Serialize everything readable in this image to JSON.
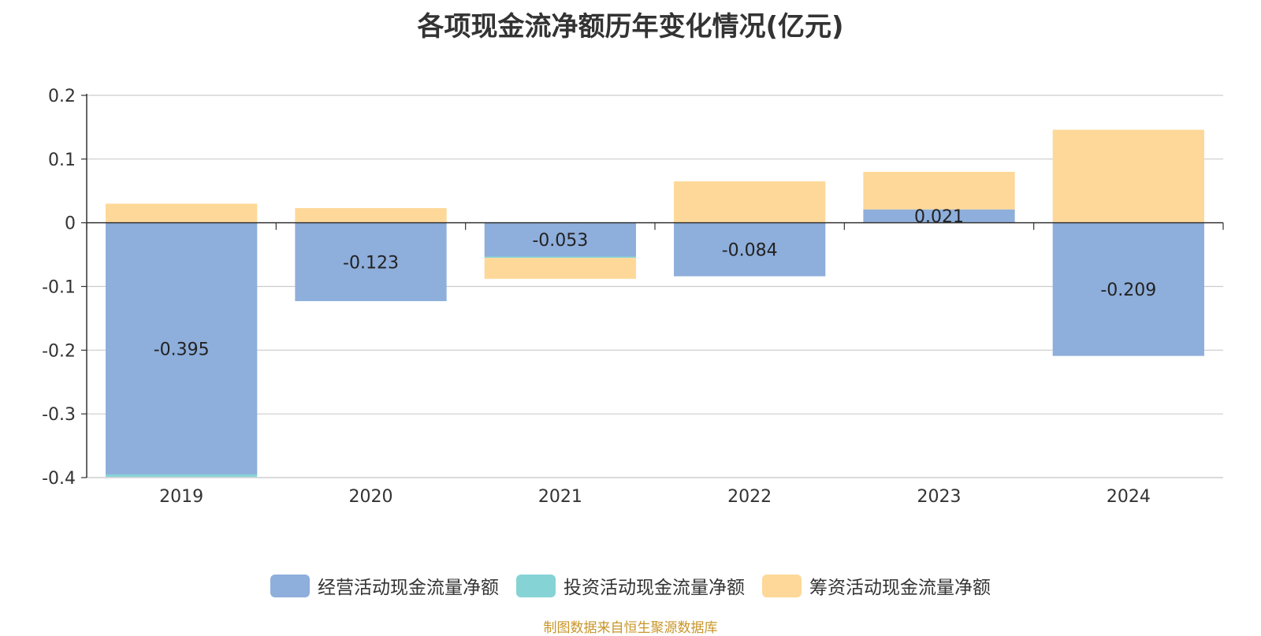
{
  "chart_data": {
    "type": "bar",
    "stacked": true,
    "title": "各项现金流净额历年变化情况(亿元)",
    "categories": [
      "2019",
      "2020",
      "2021",
      "2022",
      "2023",
      "2024"
    ],
    "ylim": [
      -0.4,
      0.2
    ],
    "yticks": [
      "0.2",
      "0.1",
      "0",
      "-0.1",
      "-0.2",
      "-0.3",
      "-0.4"
    ],
    "ytick_values": [
      0.2,
      0.1,
      0,
      -0.1,
      -0.2,
      -0.3,
      -0.4
    ],
    "grid": true,
    "legend_position": "bottom",
    "series": [
      {
        "name": "经营活动现金流量净额",
        "color": "#8eaedb",
        "values": [
          -0.395,
          -0.123,
          -0.053,
          -0.084,
          0.021,
          -0.209
        ],
        "labels": [
          "-0.395",
          "-0.123",
          "-0.053",
          "-0.084",
          "0.021",
          "-0.209"
        ]
      },
      {
        "name": "投资活动现金流量净额",
        "color": "#86d3d6",
        "values": [
          -0.004,
          0,
          -0.002,
          0,
          0,
          0
        ]
      },
      {
        "name": "筹资活动现金流量净额",
        "color": "#fdd898",
        "values": [
          0.03,
          0.023,
          -0.033,
          0.065,
          0.059,
          0.146
        ]
      }
    ]
  },
  "footer": {
    "source": "制图数据来自恒生聚源数据库"
  }
}
